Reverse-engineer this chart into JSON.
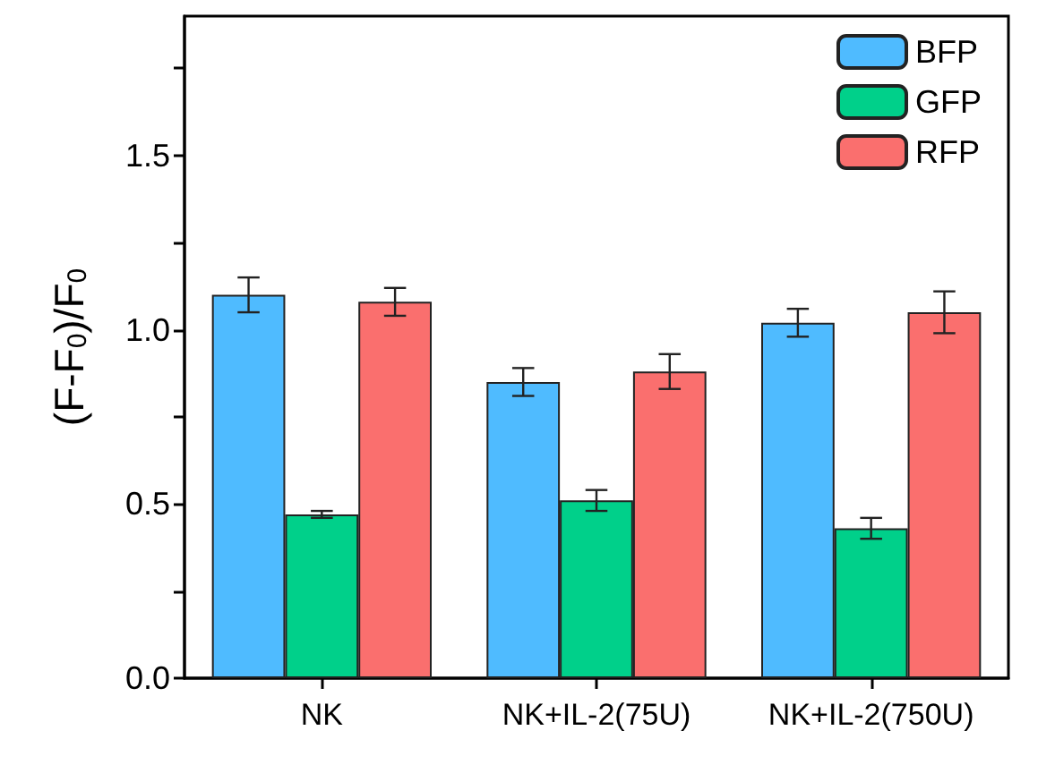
{
  "chart_data": {
    "type": "bar",
    "ylabel": "(F-F$_{0}$)/F$_{0}$",
    "categories": [
      "NK",
      "NK+IL-2(75U)",
      "NK+IL-2(750U)"
    ],
    "series": [
      {
        "name": "BFP",
        "color": "#4fbbff",
        "values": [
          1.1,
          0.85,
          1.02
        ],
        "errors": [
          0.05,
          0.04,
          0.04
        ]
      },
      {
        "name": "GFP",
        "color": "#00d08a",
        "values": [
          0.47,
          0.51,
          0.43
        ],
        "errors": [
          0.01,
          0.03,
          0.03
        ]
      },
      {
        "name": "RFP",
        "color": "#fa6f6e",
        "values": [
          1.08,
          0.88,
          1.05
        ],
        "errors": [
          0.04,
          0.05,
          0.06
        ]
      }
    ],
    "ylim": [
      0,
      1.9
    ],
    "yticks": [
      {
        "value": 0,
        "label": "0.0"
      },
      {
        "value": 0.25,
        "label": null
      },
      {
        "value": 0.5,
        "label": "0.5"
      },
      {
        "value": 0.75,
        "label": null
      },
      {
        "value": 1,
        "label": "1.0"
      },
      {
        "value": 1.25,
        "label": null
      },
      {
        "value": 1.5,
        "label": "1.5"
      },
      {
        "value": 1.75,
        "label": null
      }
    ],
    "grid": false,
    "legend": "top right"
  }
}
